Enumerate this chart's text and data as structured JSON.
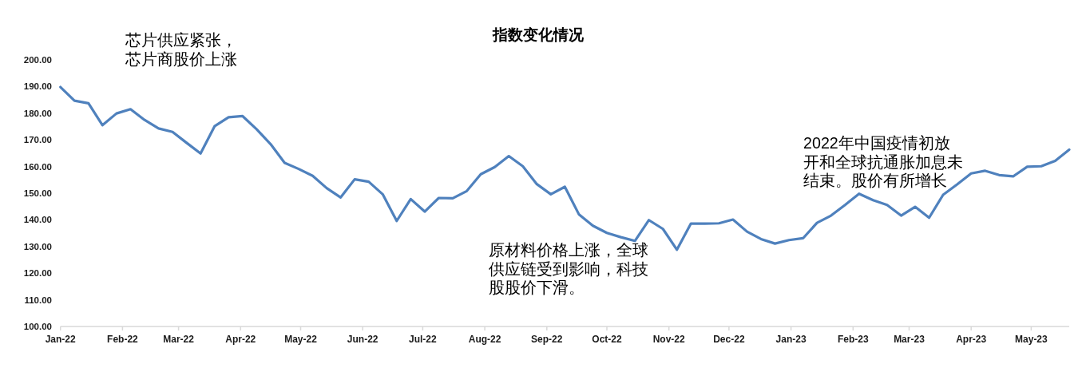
{
  "chart_data": {
    "type": "line",
    "title": "指数变化情况",
    "annotations": [
      "芯片供应紧张，芯片商股价上涨",
      "原材料价格上涨，全球供应链受到影响，科技股股价下滑。",
      "2022年中国疫情初放开和全球抗通胀加息未结束。股价有所增长"
    ],
    "x": [
      "2022-01-01",
      "2022-01-08",
      "2022-01-15",
      "2022-01-22",
      "2022-01-29",
      "2022-02-05",
      "2022-02-12",
      "2022-02-19",
      "2022-02-26",
      "2022-03-05",
      "2022-03-12",
      "2022-03-19",
      "2022-03-26",
      "2022-04-02",
      "2022-04-09",
      "2022-04-16",
      "2022-04-23",
      "2022-04-30",
      "2022-05-07",
      "2022-05-14",
      "2022-05-21",
      "2022-05-28",
      "2022-06-04",
      "2022-06-11",
      "2022-06-18",
      "2022-06-25",
      "2022-07-02",
      "2022-07-09",
      "2022-07-16",
      "2022-07-23",
      "2022-07-30",
      "2022-08-06",
      "2022-08-13",
      "2022-08-20",
      "2022-08-27",
      "2022-09-03",
      "2022-09-10",
      "2022-09-17",
      "2022-09-24",
      "2022-10-01",
      "2022-10-08",
      "2022-10-15",
      "2022-10-22",
      "2022-10-29",
      "2022-11-05",
      "2022-11-12",
      "2022-11-19",
      "2022-11-26",
      "2022-12-03",
      "2022-12-10",
      "2022-12-17",
      "2022-12-24",
      "2022-12-31",
      "2023-01-07",
      "2023-01-14",
      "2023-01-21",
      "2023-01-28",
      "2023-02-04",
      "2023-02-11",
      "2023-02-18",
      "2023-02-25",
      "2023-03-04",
      "2023-03-11",
      "2023-03-18",
      "2023-03-25",
      "2023-04-01",
      "2023-04-08",
      "2023-04-15",
      "2023-04-22",
      "2023-04-29",
      "2023-05-06",
      "2023-05-13",
      "2023-05-20"
    ],
    "series": [
      {
        "color": "#4f81bd",
        "values": [
          189.8,
          184.7,
          183.7,
          175.5,
          179.9,
          181.5,
          177.5,
          174.3,
          173.0,
          168.9,
          164.9,
          175.1,
          178.5,
          178.9,
          174.0,
          168.4,
          161.4,
          159.1,
          156.5,
          151.9,
          148.4,
          155.2,
          154.3,
          149.6,
          139.6,
          147.8,
          143.1,
          148.2,
          148.1,
          150.8,
          157.1,
          159.8,
          163.9,
          160.1,
          153.4,
          149.6,
          152.4,
          142.1,
          137.8,
          135.1,
          133.5,
          132.1,
          139.9,
          136.6,
          128.8,
          138.6,
          138.6,
          138.7,
          140.1,
          135.6,
          132.8,
          131.1,
          132.4,
          133.1,
          138.9,
          141.6,
          145.6,
          149.8,
          147.4,
          145.6,
          141.6,
          144.9,
          140.8,
          149.4,
          153.3,
          157.4,
          158.4,
          156.8,
          156.3,
          159.9,
          160.1,
          162.1,
          166.3
        ]
      }
    ],
    "xlim": [
      "2022-01-01",
      "2023-05-20"
    ],
    "xticks": [
      {
        "value": "2022-01-01",
        "label": "Jan-22"
      },
      {
        "value": "2022-02-01",
        "label": "Feb-22"
      },
      {
        "value": "2022-03-01",
        "label": "Mar-22"
      },
      {
        "value": "2022-04-01",
        "label": "Apr-22"
      },
      {
        "value": "2022-05-01",
        "label": "May-22"
      },
      {
        "value": "2022-06-01",
        "label": "Jun-22"
      },
      {
        "value": "2022-07-01",
        "label": "Jul-22"
      },
      {
        "value": "2022-08-01",
        "label": "Aug-22"
      },
      {
        "value": "2022-09-01",
        "label": "Sep-22"
      },
      {
        "value": "2022-10-01",
        "label": "Oct-22"
      },
      {
        "value": "2022-11-01",
        "label": "Nov-22"
      },
      {
        "value": "2022-12-01",
        "label": "Dec-22"
      },
      {
        "value": "2023-01-01",
        "label": "Jan-23"
      },
      {
        "value": "2023-02-01",
        "label": "Feb-23"
      },
      {
        "value": "2023-03-01",
        "label": "Mar-23"
      },
      {
        "value": "2023-04-01",
        "label": "Apr-23"
      },
      {
        "value": "2023-05-01",
        "label": "May-23"
      }
    ],
    "ylim": [
      100,
      200
    ],
    "yticks": [
      {
        "value": 100,
        "label": "100.00"
      },
      {
        "value": 110,
        "label": "110.00"
      },
      {
        "value": 120,
        "label": "120.00"
      },
      {
        "value": 130,
        "label": "130.00"
      },
      {
        "value": 140,
        "label": "140.00"
      },
      {
        "value": 150,
        "label": "150.00"
      },
      {
        "value": 160,
        "label": "160.00"
      },
      {
        "value": 170,
        "label": "170.00"
      },
      {
        "value": 180,
        "label": "180.00"
      },
      {
        "value": 190,
        "label": "190.00"
      },
      {
        "value": 200,
        "label": "200.00"
      }
    ]
  }
}
